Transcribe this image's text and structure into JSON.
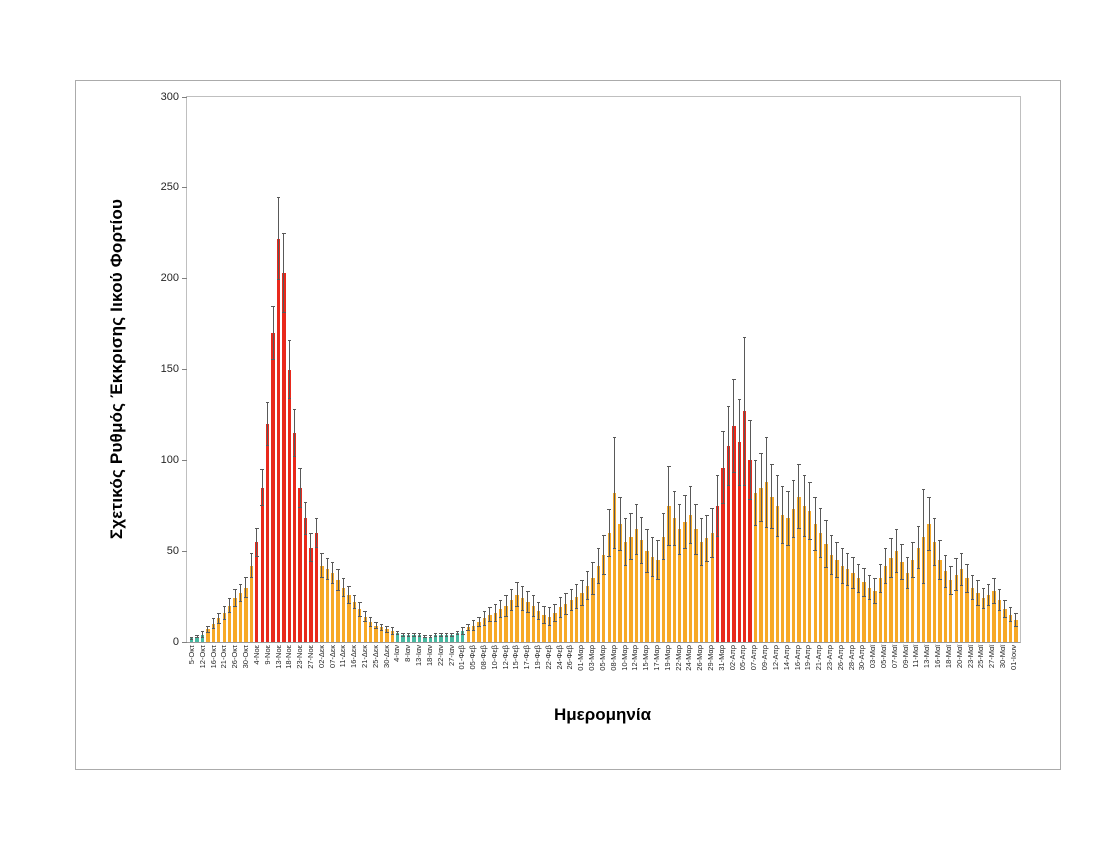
{
  "figure": {
    "y_axis_title": "Σχετικός Ρυθμός Έκκρισης Ιικού Φορτίου",
    "x_axis_title": "Ημερομηνία"
  },
  "colors": {
    "teal": "#45b9a0",
    "orange": "#f7a928",
    "red": "#e8291c",
    "whisker": "#595959",
    "frame_border": "#ababab",
    "plot_border": "#bfbfbf"
  },
  "chart_data": {
    "type": "bar",
    "title": "",
    "xlabel": "Ημερομηνία",
    "ylabel": "Σχετικός Ρυθμός Έκκρισης Ιικού Φορτίου",
    "ylim": [
      0,
      300
    ],
    "yticks": [
      0,
      50,
      100,
      150,
      200,
      250,
      300
    ],
    "grid": false,
    "legend": "none",
    "error_bars": true,
    "color_legend": {
      "t": "teal",
      "o": "orange",
      "r": "red"
    },
    "bars_format": [
      "label",
      "value",
      "error",
      "color_key"
    ],
    "bars": [
      [
        "5-Οκτ",
        2,
        1,
        "t"
      ],
      [
        "",
        3,
        1,
        "t"
      ],
      [
        "12-Οκτ",
        4,
        2,
        "t"
      ],
      [
        "",
        7,
        2,
        "o"
      ],
      [
        "16-Οκτ",
        10,
        3,
        "o"
      ],
      [
        "",
        13,
        3,
        "o"
      ],
      [
        "21-Οκτ",
        16,
        4,
        "o"
      ],
      [
        "",
        20,
        4,
        "o"
      ],
      [
        "26-Οκτ",
        24,
        5,
        "o"
      ],
      [
        "",
        27,
        5,
        "o"
      ],
      [
        "30-Οκτ",
        30,
        6,
        "o"
      ],
      [
        "",
        42,
        7,
        "o"
      ],
      [
        "4-Νοε",
        55,
        8,
        "r"
      ],
      [
        "",
        85,
        10,
        "r"
      ],
      [
        "9-Νοε",
        120,
        12,
        "r"
      ],
      [
        "",
        170,
        15,
        "r"
      ],
      [
        "13-Νοε",
        222,
        23,
        "r"
      ],
      [
        "",
        203,
        22,
        "r"
      ],
      [
        "18-Νοε",
        150,
        16,
        "r"
      ],
      [
        "",
        115,
        13,
        "r"
      ],
      [
        "23-Νοε",
        85,
        11,
        "r"
      ],
      [
        "",
        68,
        9,
        "r"
      ],
      [
        "27-Νοε",
        52,
        8,
        "r"
      ],
      [
        "",
        60,
        8,
        "r"
      ],
      [
        "02-Δεκ",
        42,
        7,
        "o"
      ],
      [
        "",
        40,
        6,
        "o"
      ],
      [
        "07-Δεκ",
        38,
        6,
        "o"
      ],
      [
        "",
        34,
        6,
        "o"
      ],
      [
        "11-Δεκ",
        30,
        5,
        "o"
      ],
      [
        "",
        26,
        5,
        "o"
      ],
      [
        "16-Δεκ",
        22,
        4,
        "o"
      ],
      [
        "",
        18,
        4,
        "o"
      ],
      [
        "21-Δεκ",
        14,
        3,
        "o"
      ],
      [
        "",
        11,
        3,
        "o"
      ],
      [
        "25-Δεκ",
        9,
        2,
        "o"
      ],
      [
        "",
        8,
        2,
        "o"
      ],
      [
        "30-Δεκ",
        7,
        2,
        "o"
      ],
      [
        "",
        6,
        2,
        "o"
      ],
      [
        "4-Ιαν",
        5,
        1,
        "t"
      ],
      [
        "",
        4,
        1,
        "t"
      ],
      [
        "8-Ιαν",
        4,
        1,
        "t"
      ],
      [
        "",
        4,
        1,
        "t"
      ],
      [
        "13-Ιαν",
        4,
        1,
        "t"
      ],
      [
        "",
        3,
        1,
        "t"
      ],
      [
        "18-Ιαν",
        3,
        1,
        "t"
      ],
      [
        "",
        4,
        1,
        "t"
      ],
      [
        "22-Ιαν",
        4,
        1,
        "t"
      ],
      [
        "",
        4,
        1,
        "t"
      ],
      [
        "27-Ιαν",
        4,
        1,
        "t"
      ],
      [
        "",
        5,
        1,
        "t"
      ],
      [
        "01-Φεβ",
        6,
        2,
        "t"
      ],
      [
        "",
        8,
        2,
        "o"
      ],
      [
        "05-Φεβ",
        9,
        3,
        "o"
      ],
      [
        "",
        11,
        3,
        "o"
      ],
      [
        "08-Φεβ",
        13,
        4,
        "o"
      ],
      [
        "",
        15,
        4,
        "o"
      ],
      [
        "10-Φεβ",
        16,
        5,
        "o"
      ],
      [
        "",
        18,
        5,
        "o"
      ],
      [
        "12-Φεβ",
        20,
        6,
        "o"
      ],
      [
        "",
        23,
        6,
        "o"
      ],
      [
        "15-Φεβ",
        26,
        7,
        "o"
      ],
      [
        "",
        24,
        7,
        "o"
      ],
      [
        "17-Φεβ",
        22,
        6,
        "o"
      ],
      [
        "",
        20,
        6,
        "o"
      ],
      [
        "19-Φεβ",
        17,
        5,
        "o"
      ],
      [
        "",
        15,
        5,
        "o"
      ],
      [
        "22-Φεβ",
        14,
        5,
        "o"
      ],
      [
        "",
        16,
        5,
        "o"
      ],
      [
        "24-Φεβ",
        19,
        6,
        "o"
      ],
      [
        "",
        21,
        6,
        "o"
      ],
      [
        "26-Φεβ",
        23,
        6,
        "o"
      ],
      [
        "",
        25,
        7,
        "o"
      ],
      [
        "01-Μαρ",
        27,
        7,
        "o"
      ],
      [
        "",
        31,
        8,
        "o"
      ],
      [
        "03-Μαρ",
        35,
        9,
        "o"
      ],
      [
        "",
        42,
        10,
        "o"
      ],
      [
        "05-Μαρ",
        48,
        11,
        "o"
      ],
      [
        "",
        60,
        13,
        "o"
      ],
      [
        "08-Μαρ",
        82,
        31,
        "o"
      ],
      [
        "",
        65,
        15,
        "o"
      ],
      [
        "10-Μαρ",
        55,
        13,
        "o"
      ],
      [
        "",
        58,
        13,
        "o"
      ],
      [
        "12-Μαρ",
        62,
        14,
        "o"
      ],
      [
        "",
        56,
        13,
        "o"
      ],
      [
        "15-Μαρ",
        50,
        12,
        "o"
      ],
      [
        "",
        47,
        11,
        "o"
      ],
      [
        "17-Μαρ",
        45,
        11,
        "o"
      ],
      [
        "",
        58,
        13,
        "o"
      ],
      [
        "19-Μαρ",
        75,
        22,
        "o"
      ],
      [
        "",
        68,
        15,
        "o"
      ],
      [
        "22-Μαρ",
        62,
        14,
        "o"
      ],
      [
        "",
        66,
        15,
        "o"
      ],
      [
        "24-Μαρ",
        70,
        16,
        "o"
      ],
      [
        "",
        62,
        14,
        "o"
      ],
      [
        "26-Μαρ",
        55,
        13,
        "o"
      ],
      [
        "",
        57,
        13,
        "o"
      ],
      [
        "29-Μαρ",
        60,
        14,
        "o"
      ],
      [
        "",
        75,
        17,
        "r"
      ],
      [
        "31-Μαρ",
        96,
        20,
        "r"
      ],
      [
        "",
        108,
        22,
        "r"
      ],
      [
        "02-Απρ",
        119,
        26,
        "r"
      ],
      [
        "",
        110,
        24,
        "r"
      ],
      [
        "05-Απρ",
        127,
        41,
        "r"
      ],
      [
        "",
        100,
        22,
        "r"
      ],
      [
        "07-Απρ",
        82,
        18,
        "o"
      ],
      [
        "",
        85,
        19,
        "o"
      ],
      [
        "09-Απρ",
        88,
        25,
        "o"
      ],
      [
        "",
        80,
        18,
        "o"
      ],
      [
        "12-Απρ",
        75,
        17,
        "o"
      ],
      [
        "",
        70,
        16,
        "o"
      ],
      [
        "14-Απρ",
        68,
        15,
        "o"
      ],
      [
        "",
        73,
        16,
        "o"
      ],
      [
        "16-Απρ",
        80,
        18,
        "o"
      ],
      [
        "",
        75,
        17,
        "o"
      ],
      [
        "19-Απρ",
        72,
        16,
        "o"
      ],
      [
        "",
        65,
        15,
        "o"
      ],
      [
        "21-Απρ",
        60,
        14,
        "o"
      ],
      [
        "",
        54,
        13,
        "o"
      ],
      [
        "23-Απρ",
        48,
        11,
        "o"
      ],
      [
        "",
        45,
        10,
        "o"
      ],
      [
        "26-Απρ",
        42,
        10,
        "o"
      ],
      [
        "",
        40,
        9,
        "o"
      ],
      [
        "28-Απρ",
        38,
        9,
        "o"
      ],
      [
        "",
        35,
        8,
        "o"
      ],
      [
        "30-Απρ",
        33,
        8,
        "o"
      ],
      [
        "",
        30,
        7,
        "o"
      ],
      [
        "03-Μαϊ",
        28,
        7,
        "o"
      ],
      [
        "",
        35,
        8,
        "o"
      ],
      [
        "05-Μαϊ",
        42,
        10,
        "o"
      ],
      [
        "",
        46,
        11,
        "o"
      ],
      [
        "07-Μαϊ",
        50,
        12,
        "o"
      ],
      [
        "",
        44,
        10,
        "o"
      ],
      [
        "09-Μαϊ",
        38,
        9,
        "o"
      ],
      [
        "",
        45,
        10,
        "o"
      ],
      [
        "11-Μαϊ",
        52,
        12,
        "o"
      ],
      [
        "",
        58,
        26,
        "o"
      ],
      [
        "13-Μαϊ",
        65,
        15,
        "o"
      ],
      [
        "",
        55,
        13,
        "o"
      ],
      [
        "16-Μαϊ",
        45,
        11,
        "o"
      ],
      [
        "",
        39,
        9,
        "o"
      ],
      [
        "18-Μαϊ",
        34,
        8,
        "o"
      ],
      [
        "",
        37,
        9,
        "o"
      ],
      [
        "20-Μαϊ",
        40,
        9,
        "o"
      ],
      [
        "",
        35,
        8,
        "o"
      ],
      [
        "23-Μαϊ",
        30,
        7,
        "o"
      ],
      [
        "",
        27,
        7,
        "o"
      ],
      [
        "25-Μαϊ",
        24,
        6,
        "o"
      ],
      [
        "",
        26,
        6,
        "o"
      ],
      [
        "27-Μαϊ",
        28,
        7,
        "o"
      ],
      [
        "",
        23,
        6,
        "o"
      ],
      [
        "30-Μαϊ",
        18,
        5,
        "o"
      ],
      [
        "",
        15,
        4,
        "o"
      ],
      [
        "01-Ιουν",
        12,
        4,
        "o"
      ]
    ]
  }
}
